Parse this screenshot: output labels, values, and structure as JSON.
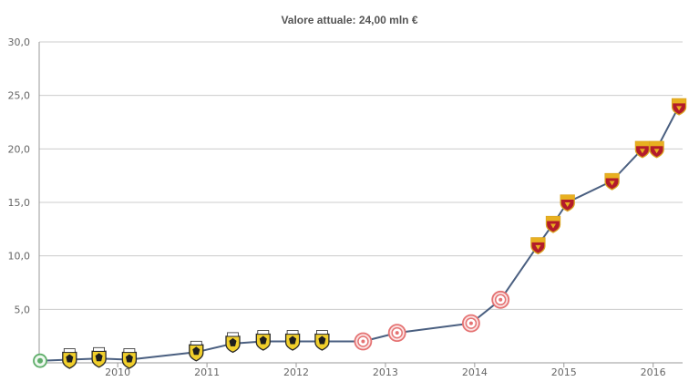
{
  "chart_data": {
    "type": "line",
    "title": "Valore attuale: 24,00 mln €",
    "xlabel": "",
    "ylabel": "",
    "ylim": [
      0,
      30
    ],
    "xlim": [
      2009.13,
      2016.33
    ],
    "y_ticks": [
      {
        "value": 5,
        "label": "5,0"
      },
      {
        "value": 10,
        "label": "10,0"
      },
      {
        "value": 15,
        "label": "15,0"
      },
      {
        "value": 20,
        "label": "20,0"
      },
      {
        "value": 25,
        "label": "25,0"
      },
      {
        "value": 30,
        "label": "30,0"
      }
    ],
    "x_ticks": [
      {
        "value": 2010,
        "label": "2010"
      },
      {
        "value": 2011,
        "label": "2011"
      },
      {
        "value": 2012,
        "label": "2012"
      },
      {
        "value": 2013,
        "label": "2013"
      },
      {
        "value": 2014,
        "label": "2014"
      },
      {
        "value": 2015,
        "label": "2015"
      },
      {
        "value": 2016,
        "label": "2016"
      }
    ],
    "grid": "horizontal",
    "colors": {
      "line": "#4a5f80",
      "grid": "#cccccc",
      "axis": "#9a9a9a"
    },
    "points": [
      {
        "x": 2009.13,
        "y": 0.2,
        "club": "green-club"
      },
      {
        "x": 2009.46,
        "y": 0.3,
        "club": "aek"
      },
      {
        "x": 2009.79,
        "y": 0.4,
        "club": "aek"
      },
      {
        "x": 2010.13,
        "y": 0.3,
        "club": "aek"
      },
      {
        "x": 2010.88,
        "y": 1.0,
        "club": "aek"
      },
      {
        "x": 2011.29,
        "y": 1.8,
        "club": "aek"
      },
      {
        "x": 2011.63,
        "y": 2.0,
        "club": "aek"
      },
      {
        "x": 2011.96,
        "y": 2.0,
        "club": "aek"
      },
      {
        "x": 2012.29,
        "y": 2.0,
        "club": "aek"
      },
      {
        "x": 2012.75,
        "y": 2.0,
        "club": "red-club"
      },
      {
        "x": 2013.13,
        "y": 2.8,
        "club": "red-club"
      },
      {
        "x": 2013.96,
        "y": 3.7,
        "club": "red-club"
      },
      {
        "x": 2014.29,
        "y": 5.9,
        "club": "red-club"
      },
      {
        "x": 2014.71,
        "y": 11.0,
        "club": "roma"
      },
      {
        "x": 2014.88,
        "y": 13.0,
        "club": "roma"
      },
      {
        "x": 2015.04,
        "y": 15.0,
        "club": "roma"
      },
      {
        "x": 2015.54,
        "y": 17.0,
        "club": "roma"
      },
      {
        "x": 2015.88,
        "y": 20.0,
        "club": "roma"
      },
      {
        "x": 2016.04,
        "y": 20.0,
        "club": "roma"
      },
      {
        "x": 2016.29,
        "y": 24.0,
        "club": "roma"
      }
    ]
  }
}
